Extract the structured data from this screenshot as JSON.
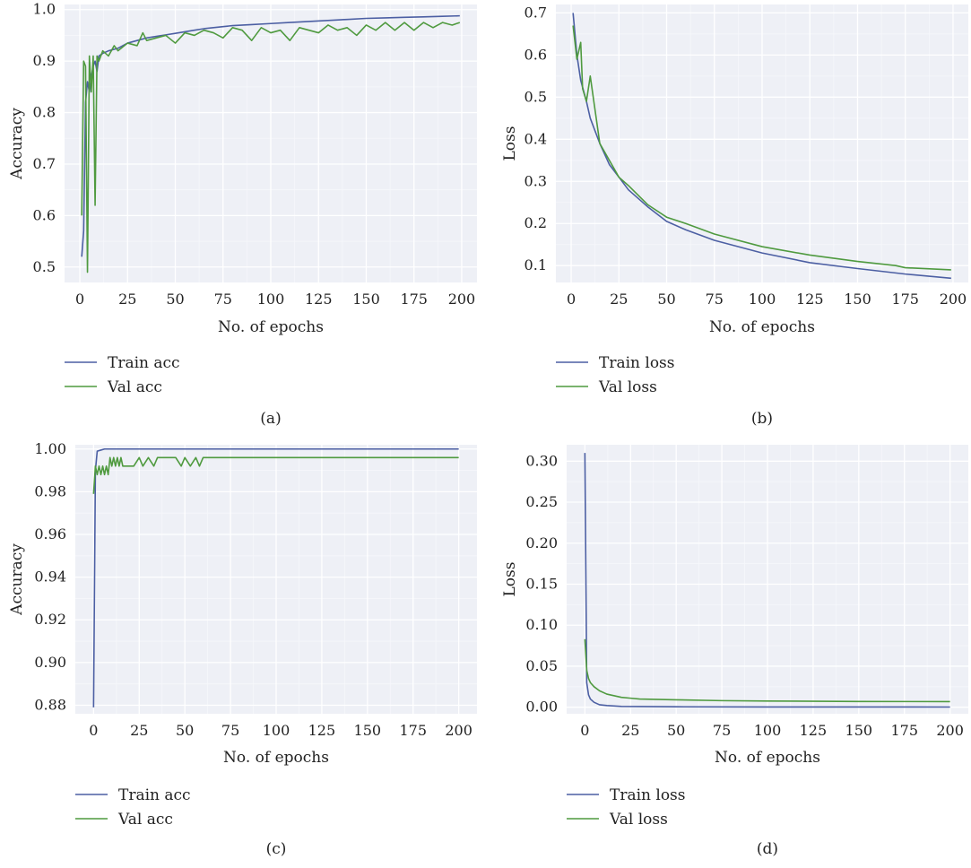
{
  "chart_data": [
    {
      "type": "line",
      "caption": "(a)",
      "xlabel": "No. of epochs",
      "ylabel": "Accuracy",
      "xlim": [
        -8,
        208
      ],
      "ylim": [
        0.47,
        1.01
      ],
      "xticks": [
        0,
        25,
        50,
        75,
        100,
        125,
        150,
        175,
        200
      ],
      "yticks": [
        0.5,
        0.6,
        0.7,
        0.8,
        0.9,
        1.0
      ],
      "ytick_labels": [
        "0.5",
        "0.6",
        "0.7",
        "0.8",
        "0.9",
        "1.0"
      ],
      "grid": true,
      "legend_position": "below",
      "series": [
        {
          "name": "Train acc",
          "color": "#4c5fa3",
          "x": [
            1,
            2,
            3,
            4,
            5,
            6,
            7,
            8,
            9,
            10,
            12,
            15,
            20,
            25,
            30,
            35,
            40,
            45,
            50,
            55,
            60,
            65,
            70,
            75,
            80,
            90,
            100,
            110,
            120,
            130,
            140,
            150,
            160,
            170,
            180,
            190,
            199
          ],
          "y": [
            0.52,
            0.57,
            0.82,
            0.86,
            0.84,
            0.87,
            0.89,
            0.9,
            0.88,
            0.91,
            0.915,
            0.92,
            0.925,
            0.935,
            0.94,
            0.945,
            0.948,
            0.951,
            0.954,
            0.957,
            0.96,
            0.963,
            0.965,
            0.967,
            0.969,
            0.971,
            0.973,
            0.975,
            0.977,
            0.979,
            0.981,
            0.983,
            0.984,
            0.985,
            0.986,
            0.987,
            0.988
          ]
        },
        {
          "name": "Val acc",
          "color": "#4f9a3f",
          "x": [
            1,
            2,
            3,
            4,
            5,
            6,
            7,
            8,
            9,
            10,
            12,
            15,
            18,
            20,
            25,
            30,
            33,
            35,
            40,
            45,
            50,
            55,
            60,
            65,
            70,
            75,
            80,
            85,
            90,
            95,
            100,
            105,
            110,
            115,
            120,
            125,
            130,
            135,
            140,
            145,
            150,
            155,
            160,
            165,
            170,
            175,
            180,
            185,
            190,
            195,
            199
          ],
          "y": [
            0.6,
            0.9,
            0.89,
            0.49,
            0.91,
            0.84,
            0.91,
            0.62,
            0.91,
            0.9,
            0.92,
            0.91,
            0.93,
            0.92,
            0.935,
            0.93,
            0.955,
            0.94,
            0.945,
            0.95,
            0.935,
            0.955,
            0.95,
            0.96,
            0.955,
            0.945,
            0.965,
            0.96,
            0.94,
            0.965,
            0.955,
            0.96,
            0.94,
            0.965,
            0.96,
            0.955,
            0.97,
            0.96,
            0.965,
            0.95,
            0.97,
            0.96,
            0.975,
            0.96,
            0.975,
            0.96,
            0.975,
            0.965,
            0.975,
            0.97,
            0.975
          ]
        }
      ]
    },
    {
      "type": "line",
      "caption": "(b)",
      "xlabel": "No. of epochs",
      "ylabel": "Loss",
      "xlim": [
        -8,
        208
      ],
      "ylim": [
        0.06,
        0.72
      ],
      "xticks": [
        0,
        25,
        50,
        75,
        100,
        125,
        150,
        175,
        200
      ],
      "yticks": [
        0.1,
        0.2,
        0.3,
        0.4,
        0.5,
        0.6,
        0.7
      ],
      "ytick_labels": [
        "0.1",
        "0.2",
        "0.3",
        "0.4",
        "0.5",
        "0.6",
        "0.7"
      ],
      "grid": true,
      "legend_position": "below",
      "series": [
        {
          "name": "Train loss",
          "color": "#4c5fa3",
          "x": [
            1,
            3,
            5,
            8,
            10,
            15,
            20,
            25,
            30,
            40,
            50,
            60,
            75,
            100,
            125,
            150,
            175,
            199
          ],
          "y": [
            0.7,
            0.6,
            0.54,
            0.49,
            0.45,
            0.39,
            0.34,
            0.31,
            0.28,
            0.24,
            0.205,
            0.185,
            0.16,
            0.13,
            0.107,
            0.093,
            0.08,
            0.07
          ]
        },
        {
          "name": "Val loss",
          "color": "#4f9a3f",
          "x": [
            1,
            3,
            5,
            6,
            8,
            10,
            15,
            20,
            25,
            30,
            40,
            50,
            60,
            75,
            100,
            125,
            150,
            170,
            175,
            199
          ],
          "y": [
            0.67,
            0.59,
            0.63,
            0.52,
            0.49,
            0.55,
            0.39,
            0.35,
            0.31,
            0.29,
            0.245,
            0.215,
            0.2,
            0.175,
            0.145,
            0.125,
            0.11,
            0.1,
            0.095,
            0.09
          ]
        }
      ]
    },
    {
      "type": "line",
      "caption": "(c)",
      "xlabel": "No. of epochs",
      "ylabel": "Accuracy",
      "xlim": [
        -10,
        210
      ],
      "ylim": [
        0.876,
        1.002
      ],
      "xticks": [
        0,
        25,
        50,
        75,
        100,
        125,
        150,
        175,
        200
      ],
      "yticks": [
        0.88,
        0.9,
        0.92,
        0.94,
        0.96,
        0.98,
        1.0
      ],
      "ytick_labels": [
        "0.88",
        "0.90",
        "0.92",
        "0.94",
        "0.96",
        "0.98",
        "1.00"
      ],
      "grid": true,
      "legend_position": "below",
      "series": [
        {
          "name": "Train acc",
          "color": "#4c5fa3",
          "x": [
            0,
            1,
            2,
            4,
            6,
            200
          ],
          "y": [
            0.879,
            0.99,
            0.999,
            0.9995,
            1.0,
            1.0
          ]
        },
        {
          "name": "Val acc",
          "color": "#4f9a3f",
          "x": [
            0,
            1,
            2,
            3,
            4,
            5,
            6,
            7,
            8,
            9,
            10,
            11,
            12,
            13,
            14,
            15,
            16,
            18,
            22,
            25,
            27,
            30,
            33,
            35,
            40,
            45,
            48,
            50,
            53,
            56,
            58,
            60,
            62,
            70,
            100,
            200
          ],
          "y": [
            0.979,
            0.992,
            0.988,
            0.992,
            0.988,
            0.992,
            0.988,
            0.992,
            0.988,
            0.996,
            0.992,
            0.996,
            0.992,
            0.996,
            0.992,
            0.996,
            0.992,
            0.992,
            0.992,
            0.996,
            0.992,
            0.996,
            0.992,
            0.996,
            0.996,
            0.996,
            0.992,
            0.996,
            0.992,
            0.996,
            0.992,
            0.996,
            0.996,
            0.996,
            0.996,
            0.996
          ]
        }
      ]
    },
    {
      "type": "line",
      "caption": "(d)",
      "xlabel": "No. of epochs",
      "ylabel": "Loss",
      "xlim": [
        -10,
        210
      ],
      "ylim": [
        -0.008,
        0.32
      ],
      "xticks": [
        0,
        25,
        50,
        75,
        100,
        125,
        150,
        175,
        200
      ],
      "yticks": [
        0.0,
        0.05,
        0.1,
        0.15,
        0.2,
        0.25,
        0.3
      ],
      "ytick_labels": [
        "0.00",
        "0.05",
        "0.10",
        "0.15",
        "0.20",
        "0.25",
        "0.30"
      ],
      "grid": true,
      "legend_position": "below",
      "series": [
        {
          "name": "Train loss",
          "color": "#4c5fa3",
          "x": [
            0,
            1,
            2,
            3,
            5,
            8,
            12,
            20,
            50,
            100,
            200
          ],
          "y": [
            0.31,
            0.03,
            0.015,
            0.01,
            0.006,
            0.003,
            0.002,
            0.001,
            0.0005,
            0.0003,
            0.0002
          ]
        },
        {
          "name": "Val loss",
          "color": "#4f9a3f",
          "x": [
            0,
            1,
            2,
            3,
            5,
            8,
            12,
            20,
            25,
            30,
            50,
            75,
            100,
            150,
            200
          ],
          "y": [
            0.083,
            0.045,
            0.035,
            0.03,
            0.025,
            0.02,
            0.016,
            0.012,
            0.011,
            0.01,
            0.009,
            0.008,
            0.0075,
            0.007,
            0.0068
          ]
        }
      ]
    }
  ]
}
